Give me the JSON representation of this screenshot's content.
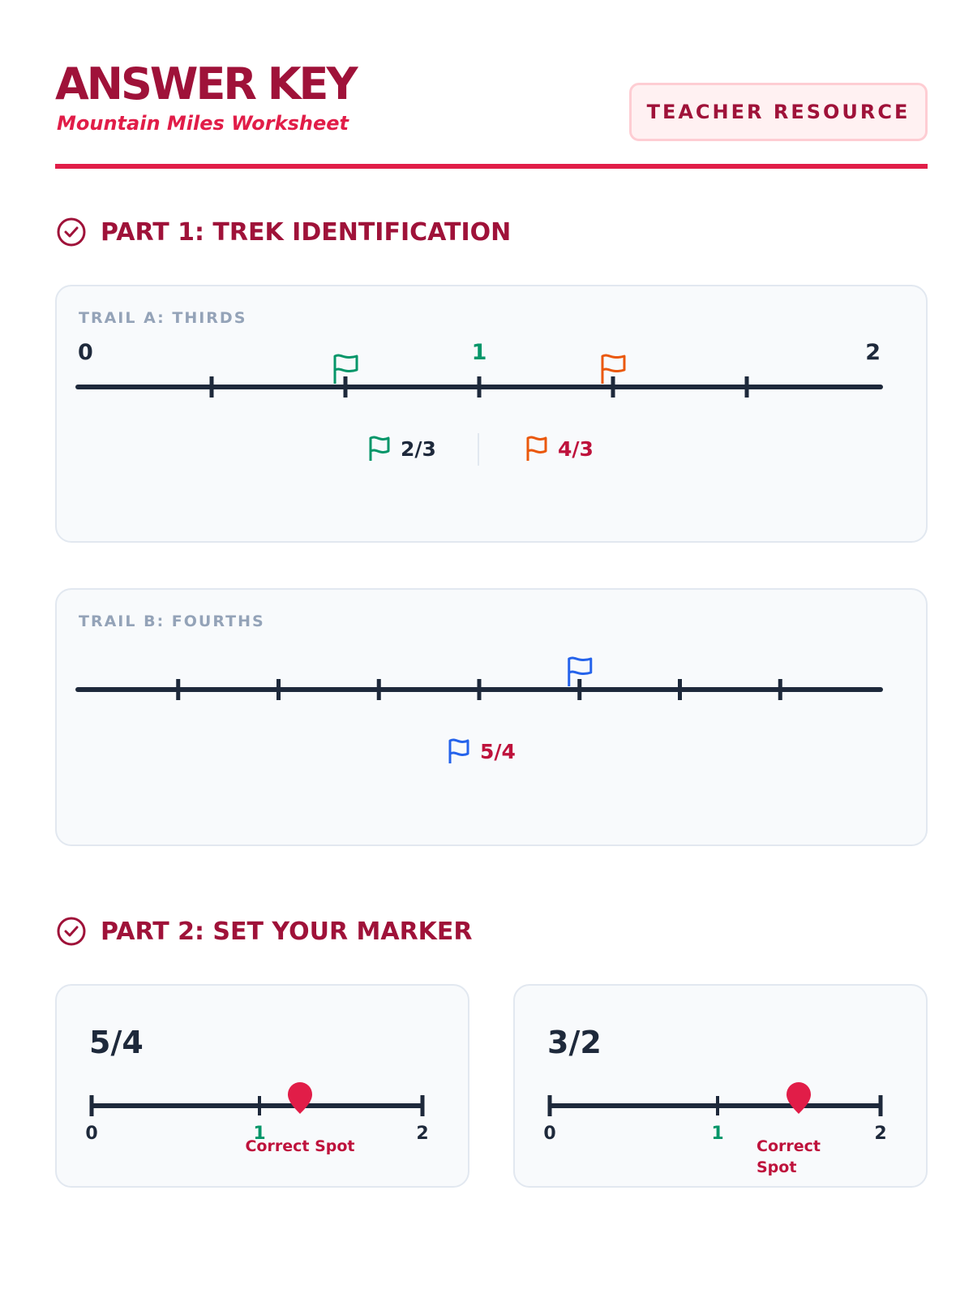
{
  "header": {
    "title": "ANSWER KEY",
    "subtitle": "Mountain Miles Worksheet",
    "badge": "TEACHER RESOURCE"
  },
  "part1": {
    "heading": "PART 1: TREK IDENTIFICATION",
    "trail_a": {
      "label": "TRAIL A: THIRDS",
      "labels": {
        "start": "0",
        "mid": "1",
        "end": "2"
      },
      "range": [
        0,
        2
      ],
      "divisions": 6,
      "flags": [
        {
          "value": 0.6667,
          "color": "#059669",
          "answer": "2/3"
        },
        {
          "value": 1.3333,
          "color": "#ea580c",
          "answer": "4/3"
        }
      ]
    },
    "trail_b": {
      "label": "TRAIL B: FOURTHS",
      "range": [
        0,
        2
      ],
      "divisions": 8,
      "flags": [
        {
          "value": 1.25,
          "color": "#2563eb",
          "answer": "5/4"
        }
      ]
    }
  },
  "part2": {
    "heading": "PART 2: SET YOUR MARKER",
    "markers": [
      {
        "fraction": "5/4",
        "value": 1.25,
        "tick_labels": [
          "0",
          "1",
          "2"
        ],
        "caption": "Correct Spot"
      },
      {
        "fraction": "3/2",
        "value": 1.5,
        "tick_labels": [
          "0",
          "1",
          "2"
        ],
        "caption_lines": [
          "Correct",
          "Spot"
        ]
      }
    ]
  },
  "colors": {
    "brand": "#9f1239",
    "accent": "#e11d48",
    "line": "#1e293b",
    "one_label": "#059669",
    "flag_green": "#059669",
    "flag_orange": "#ea580c",
    "flag_blue": "#2563eb"
  }
}
